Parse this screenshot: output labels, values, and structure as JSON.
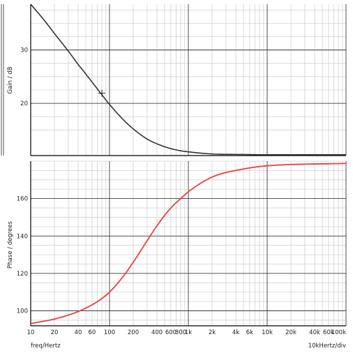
{
  "chart_data": [
    {
      "type": "line",
      "title": "",
      "ylabel": "Gain / dB",
      "xscale": "log",
      "xlim": [
        10,
        100000
      ],
      "ylim": [
        10.2,
        38.6
      ],
      "yticks": [
        20,
        30
      ],
      "grid": true,
      "series": [
        {
          "color": "#333333",
          "x": [
            10,
            15,
            20,
            30,
            40,
            50,
            60,
            80,
            100,
            150,
            200,
            300,
            400,
            600,
            800,
            1000,
            2000,
            5000,
            10000,
            100000
          ],
          "y": [
            38.6,
            35.5,
            33.1,
            29.8,
            27.3,
            25.5,
            24.0,
            21.6,
            19.8,
            16.9,
            15.2,
            13.3,
            12.4,
            11.5,
            11.1,
            10.9,
            10.5,
            10.4,
            10.35,
            10.35
          ]
        }
      ],
      "annotations": [
        {
          "type": "crosshair-marker",
          "x": 80,
          "y": 21.9
        }
      ]
    },
    {
      "type": "line",
      "title": "",
      "xlabel": "freq/Hertz",
      "ylabel": "Phase / degrees",
      "xscale": "log",
      "xlim": [
        10,
        100000
      ],
      "ylim": [
        92,
        180
      ],
      "yticks": [
        100,
        120,
        140,
        160
      ],
      "grid": true,
      "series": [
        {
          "color": "#e84040",
          "x": [
            10,
            20,
            30,
            40,
            60,
            80,
            100,
            150,
            200,
            300,
            400,
            600,
            800,
            1000,
            2000,
            5000,
            10000,
            100000
          ],
          "y": [
            93.2,
            95.6,
            97.7,
            99.6,
            103.2,
            106.6,
            110.0,
            118.5,
            126.0,
            137.5,
            145.5,
            155.0,
            160.0,
            163.6,
            171.5,
            175.8,
            177.5,
            178.8
          ]
        }
      ]
    }
  ],
  "x_tick_labels": [
    {
      "x": 10,
      "label": "10"
    },
    {
      "x": 20,
      "label": "20"
    },
    {
      "x": 40,
      "label": "40"
    },
    {
      "x": 60,
      "label": "60"
    },
    {
      "x": 100,
      "label": "100"
    },
    {
      "x": 200,
      "label": "200"
    },
    {
      "x": 400,
      "label": "400"
    },
    {
      "x": 600,
      "label": "600"
    },
    {
      "x": 800,
      "label": "800"
    },
    {
      "x": 1000,
      "label": "1k"
    },
    {
      "x": 2000,
      "label": "2k"
    },
    {
      "x": 4000,
      "label": "4k"
    },
    {
      "x": 6000,
      "label": "6k"
    },
    {
      "x": 10000,
      "label": "10k"
    },
    {
      "x": 20000,
      "label": "20k"
    },
    {
      "x": 40000,
      "label": "40k"
    },
    {
      "x": 60000,
      "label": "60k"
    },
    {
      "x": 100000,
      "label": "100k"
    }
  ],
  "x_division_label": "10kHertz/div",
  "colors": {
    "grid_minor": "#d0d0d0",
    "grid_major": "#222222",
    "axis": "#000000"
  }
}
